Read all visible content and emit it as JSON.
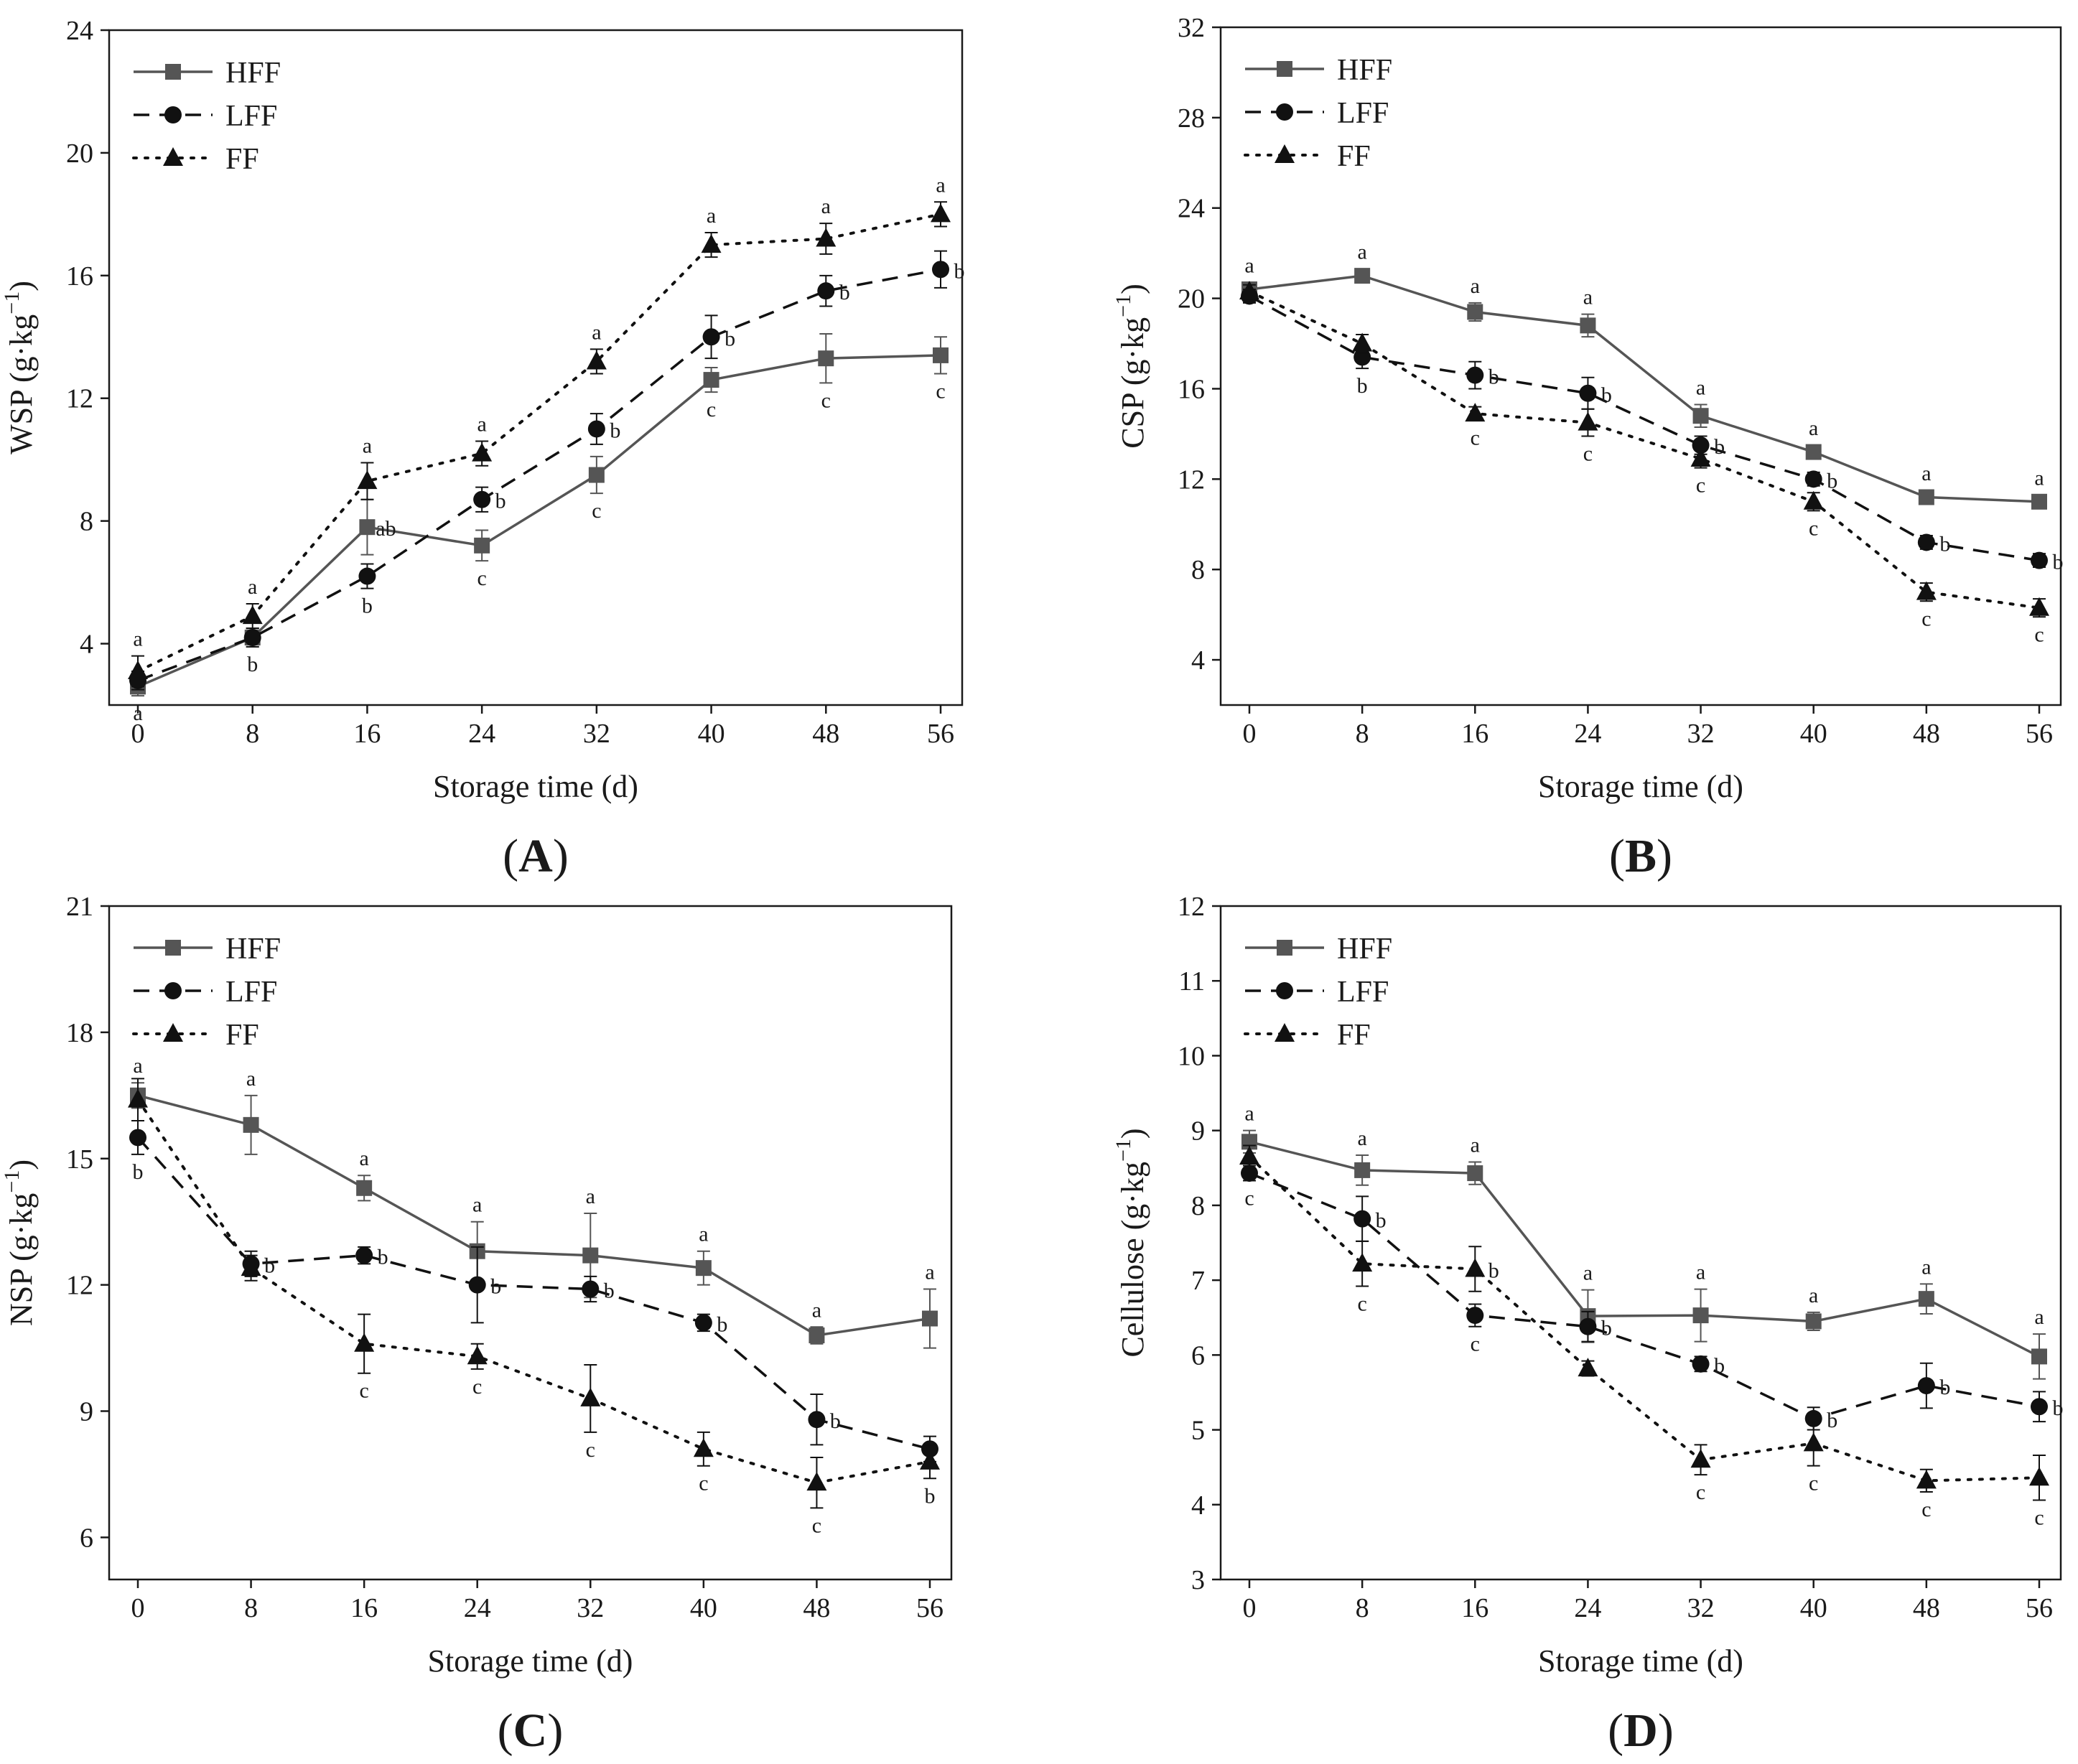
{
  "colors": {
    "HFF": "#555555",
    "LFF": "#111111",
    "FF": "#111111",
    "axis": "#1a1a1a"
  },
  "chart_data": [
    {
      "type": "line",
      "panel": "A",
      "xlabel": "Storage time (d)",
      "ylabel": "WSP (g·kg⁻¹)",
      "ylabel_main": "WSP (g·kg",
      "ylabel_sup": "−1",
      "ylabel_tail": ")",
      "x": [
        0,
        8,
        16,
        24,
        32,
        40,
        48,
        56
      ],
      "xticks": [
        "0",
        "8",
        "16",
        "24",
        "32",
        "40",
        "48",
        "56"
      ],
      "ylim": [
        2,
        24
      ],
      "yticks": [
        4,
        8,
        12,
        16,
        20,
        24
      ],
      "legend": [
        "HFF",
        "LFF",
        "FF"
      ],
      "series": [
        {
          "name": "HFF",
          "values": [
            2.6,
            4.2,
            7.8,
            7.2,
            9.5,
            12.6,
            13.3,
            13.4
          ],
          "err": [
            0.3,
            0.3,
            0.9,
            0.5,
            0.6,
            0.4,
            0.8,
            0.6
          ],
          "letters": [
            "a",
            "",
            "ab",
            "c",
            "c",
            "c",
            "c",
            "c"
          ]
        },
        {
          "name": "LFF",
          "values": [
            2.8,
            4.2,
            6.2,
            8.7,
            11.0,
            14.0,
            15.5,
            16.2
          ],
          "err": [
            0.3,
            0.3,
            0.4,
            0.4,
            0.5,
            0.7,
            0.5,
            0.6
          ],
          "letters": [
            "",
            "b",
            "b",
            "b",
            "b",
            "b",
            "b",
            "b"
          ]
        },
        {
          "name": "FF",
          "values": [
            3.1,
            4.9,
            9.3,
            10.2,
            13.2,
            17.0,
            17.2,
            18.0
          ],
          "err": [
            0.5,
            0.4,
            0.6,
            0.4,
            0.4,
            0.4,
            0.5,
            0.4
          ],
          "letters": [
            "a",
            "a",
            "a",
            "a",
            "a",
            "a",
            "a",
            "a"
          ]
        }
      ]
    },
    {
      "type": "line",
      "panel": "B",
      "xlabel": "Storage time (d)",
      "ylabel": "CSP (g·kg⁻¹)",
      "ylabel_main": "CSP (g·kg",
      "ylabel_sup": "−1",
      "ylabel_tail": ")",
      "x": [
        0,
        8,
        16,
        24,
        32,
        40,
        48,
        56
      ],
      "xticks": [
        "0",
        "8",
        "16",
        "24",
        "32",
        "40",
        "48",
        "56"
      ],
      "ylim": [
        2,
        32
      ],
      "yticks": [
        4,
        8,
        12,
        16,
        20,
        24,
        28,
        32
      ],
      "legend": [
        "HFF",
        "LFF",
        "FF"
      ],
      "series": [
        {
          "name": "HFF",
          "values": [
            20.4,
            21.0,
            19.4,
            18.8,
            14.8,
            13.2,
            11.2,
            11.0
          ],
          "err": [
            0.3,
            0.3,
            0.4,
            0.5,
            0.5,
            0.3,
            0.3,
            0.3
          ],
          "letters": [
            "a",
            "a",
            "a",
            "a",
            "a",
            "a",
            "a",
            "a"
          ]
        },
        {
          "name": "LFF",
          "values": [
            20.1,
            17.4,
            16.6,
            15.8,
            13.5,
            12.0,
            9.2,
            8.4
          ],
          "err": [
            0.3,
            0.5,
            0.6,
            0.7,
            0.4,
            0.3,
            0.3,
            0.3
          ],
          "letters": [
            "",
            "b",
            "b",
            "b",
            "b",
            "b",
            "b",
            "b"
          ]
        },
        {
          "name": "FF",
          "values": [
            20.3,
            18.0,
            14.9,
            14.5,
            12.9,
            11.0,
            7.0,
            6.3
          ],
          "err": [
            0.3,
            0.4,
            0.3,
            0.6,
            0.4,
            0.4,
            0.4,
            0.4
          ],
          "letters": [
            "",
            "",
            "c",
            "c",
            "c",
            "c",
            "c",
            "c"
          ]
        }
      ]
    },
    {
      "type": "line",
      "panel": "C",
      "xlabel": "Storage time (d)",
      "ylabel": "NSP (g·kg⁻¹)",
      "ylabel_main": "NSP (g·kg",
      "ylabel_sup": "−1",
      "ylabel_tail": ")",
      "x": [
        0,
        8,
        16,
        24,
        32,
        40,
        48,
        56
      ],
      "xticks": [
        "0",
        "8",
        "16",
        "24",
        "32",
        "40",
        "48",
        "56"
      ],
      "ylim": [
        5,
        21
      ],
      "yticks": [
        6,
        9,
        12,
        15,
        18,
        21
      ],
      "legend": [
        "HFF",
        "LFF",
        "FF"
      ],
      "series": [
        {
          "name": "HFF",
          "values": [
            16.5,
            15.8,
            14.3,
            12.8,
            12.7,
            12.4,
            10.8,
            11.2
          ],
          "err": [
            0.3,
            0.7,
            0.3,
            0.7,
            1.0,
            0.4,
            0.2,
            0.7
          ],
          "letters": [
            "a",
            "a",
            "a",
            "a",
            "a",
            "a",
            "a",
            "a"
          ]
        },
        {
          "name": "LFF",
          "values": [
            15.5,
            12.5,
            12.7,
            12.0,
            11.9,
            11.1,
            8.8,
            8.1
          ],
          "err": [
            0.4,
            0.3,
            0.2,
            0.9,
            0.3,
            0.2,
            0.6,
            0.3
          ],
          "letters": [
            "b",
            "b",
            "b",
            "b",
            "b",
            "b",
            "b",
            ""
          ]
        },
        {
          "name": "FF",
          "values": [
            16.4,
            12.4,
            10.6,
            10.3,
            9.3,
            8.1,
            7.3,
            7.8
          ],
          "err": [
            0.5,
            0.3,
            0.7,
            0.3,
            0.8,
            0.4,
            0.6,
            0.4
          ],
          "letters": [
            "",
            "",
            "c",
            "c",
            "c",
            "c",
            "c",
            "b"
          ]
        }
      ]
    },
    {
      "type": "line",
      "panel": "D",
      "xlabel": "Storage time (d)",
      "ylabel": "Cellulose (g·kg⁻¹)",
      "ylabel_main": "Cellulose (g·kg",
      "ylabel_sup": "−1",
      "ylabel_tail": ")",
      "x": [
        0,
        8,
        16,
        24,
        32,
        40,
        48,
        56
      ],
      "xticks": [
        "0",
        "8",
        "16",
        "24",
        "32",
        "40",
        "48",
        "56"
      ],
      "ylim": [
        3,
        12
      ],
      "yticks": [
        3,
        4,
        5,
        6,
        7,
        8,
        9,
        10,
        11,
        12
      ],
      "legend": [
        "HFF",
        "LFF",
        "FF"
      ],
      "series": [
        {
          "name": "HFF",
          "values": [
            8.85,
            8.47,
            8.43,
            6.52,
            6.53,
            6.45,
            6.75,
            5.98
          ],
          "err": [
            0.15,
            0.2,
            0.15,
            0.35,
            0.35,
            0.12,
            0.2,
            0.3
          ],
          "letters": [
            "a",
            "a",
            "a",
            "a",
            "a",
            "a",
            "a",
            "a"
          ]
        },
        {
          "name": "LFF",
          "values": [
            8.43,
            7.82,
            6.53,
            6.38,
            5.88,
            5.15,
            5.59,
            5.31
          ],
          "err": [
            0.1,
            0.3,
            0.15,
            0.2,
            0.1,
            0.15,
            0.3,
            0.2
          ],
          "letters": [
            "c",
            "b",
            "c",
            "b",
            "b",
            "b",
            "b",
            "b"
          ]
        },
        {
          "name": "FF",
          "values": [
            8.65,
            7.22,
            7.15,
            5.82,
            4.6,
            4.82,
            4.32,
            4.36
          ],
          "err": [
            0.15,
            0.3,
            0.3,
            0.1,
            0.2,
            0.3,
            0.15,
            0.3
          ],
          "letters": [
            "",
            "c",
            "b",
            "",
            "c",
            "c",
            "c",
            "c"
          ]
        }
      ]
    }
  ]
}
